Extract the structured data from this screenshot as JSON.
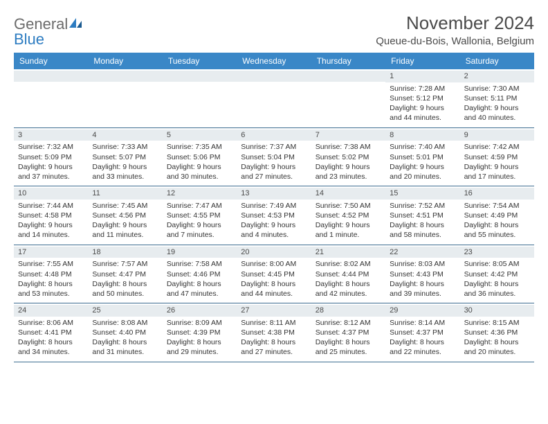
{
  "logo": {
    "line1": "General",
    "line2": "Blue"
  },
  "title": "November 2024",
  "location": "Queue-du-Bois, Wallonia, Belgium",
  "colors": {
    "header_bg": "#3a87c7",
    "header_text": "#ffffff",
    "daynum_bg": "#e7ecef",
    "border": "#3a6a8f",
    "logo_gray": "#6b6b6b",
    "logo_blue": "#2d7cc1",
    "body_text": "#333333"
  },
  "typography": {
    "title_fontsize": 26,
    "location_fontsize": 15,
    "dayheader_fontsize": 12,
    "cell_fontsize": 10.5
  },
  "day_names": [
    "Sunday",
    "Monday",
    "Tuesday",
    "Wednesday",
    "Thursday",
    "Friday",
    "Saturday"
  ],
  "weeks": [
    [
      {
        "n": "",
        "sr": "",
        "ss": "",
        "dl": ""
      },
      {
        "n": "",
        "sr": "",
        "ss": "",
        "dl": ""
      },
      {
        "n": "",
        "sr": "",
        "ss": "",
        "dl": ""
      },
      {
        "n": "",
        "sr": "",
        "ss": "",
        "dl": ""
      },
      {
        "n": "",
        "sr": "",
        "ss": "",
        "dl": ""
      },
      {
        "n": "1",
        "sr": "Sunrise: 7:28 AM",
        "ss": "Sunset: 5:12 PM",
        "dl": "Daylight: 9 hours and 44 minutes."
      },
      {
        "n": "2",
        "sr": "Sunrise: 7:30 AM",
        "ss": "Sunset: 5:11 PM",
        "dl": "Daylight: 9 hours and 40 minutes."
      }
    ],
    [
      {
        "n": "3",
        "sr": "Sunrise: 7:32 AM",
        "ss": "Sunset: 5:09 PM",
        "dl": "Daylight: 9 hours and 37 minutes."
      },
      {
        "n": "4",
        "sr": "Sunrise: 7:33 AM",
        "ss": "Sunset: 5:07 PM",
        "dl": "Daylight: 9 hours and 33 minutes."
      },
      {
        "n": "5",
        "sr": "Sunrise: 7:35 AM",
        "ss": "Sunset: 5:06 PM",
        "dl": "Daylight: 9 hours and 30 minutes."
      },
      {
        "n": "6",
        "sr": "Sunrise: 7:37 AM",
        "ss": "Sunset: 5:04 PM",
        "dl": "Daylight: 9 hours and 27 minutes."
      },
      {
        "n": "7",
        "sr": "Sunrise: 7:38 AM",
        "ss": "Sunset: 5:02 PM",
        "dl": "Daylight: 9 hours and 23 minutes."
      },
      {
        "n": "8",
        "sr": "Sunrise: 7:40 AM",
        "ss": "Sunset: 5:01 PM",
        "dl": "Daylight: 9 hours and 20 minutes."
      },
      {
        "n": "9",
        "sr": "Sunrise: 7:42 AM",
        "ss": "Sunset: 4:59 PM",
        "dl": "Daylight: 9 hours and 17 minutes."
      }
    ],
    [
      {
        "n": "10",
        "sr": "Sunrise: 7:44 AM",
        "ss": "Sunset: 4:58 PM",
        "dl": "Daylight: 9 hours and 14 minutes."
      },
      {
        "n": "11",
        "sr": "Sunrise: 7:45 AM",
        "ss": "Sunset: 4:56 PM",
        "dl": "Daylight: 9 hours and 11 minutes."
      },
      {
        "n": "12",
        "sr": "Sunrise: 7:47 AM",
        "ss": "Sunset: 4:55 PM",
        "dl": "Daylight: 9 hours and 7 minutes."
      },
      {
        "n": "13",
        "sr": "Sunrise: 7:49 AM",
        "ss": "Sunset: 4:53 PM",
        "dl": "Daylight: 9 hours and 4 minutes."
      },
      {
        "n": "14",
        "sr": "Sunrise: 7:50 AM",
        "ss": "Sunset: 4:52 PM",
        "dl": "Daylight: 9 hours and 1 minute."
      },
      {
        "n": "15",
        "sr": "Sunrise: 7:52 AM",
        "ss": "Sunset: 4:51 PM",
        "dl": "Daylight: 8 hours and 58 minutes."
      },
      {
        "n": "16",
        "sr": "Sunrise: 7:54 AM",
        "ss": "Sunset: 4:49 PM",
        "dl": "Daylight: 8 hours and 55 minutes."
      }
    ],
    [
      {
        "n": "17",
        "sr": "Sunrise: 7:55 AM",
        "ss": "Sunset: 4:48 PM",
        "dl": "Daylight: 8 hours and 53 minutes."
      },
      {
        "n": "18",
        "sr": "Sunrise: 7:57 AM",
        "ss": "Sunset: 4:47 PM",
        "dl": "Daylight: 8 hours and 50 minutes."
      },
      {
        "n": "19",
        "sr": "Sunrise: 7:58 AM",
        "ss": "Sunset: 4:46 PM",
        "dl": "Daylight: 8 hours and 47 minutes."
      },
      {
        "n": "20",
        "sr": "Sunrise: 8:00 AM",
        "ss": "Sunset: 4:45 PM",
        "dl": "Daylight: 8 hours and 44 minutes."
      },
      {
        "n": "21",
        "sr": "Sunrise: 8:02 AM",
        "ss": "Sunset: 4:44 PM",
        "dl": "Daylight: 8 hours and 42 minutes."
      },
      {
        "n": "22",
        "sr": "Sunrise: 8:03 AM",
        "ss": "Sunset: 4:43 PM",
        "dl": "Daylight: 8 hours and 39 minutes."
      },
      {
        "n": "23",
        "sr": "Sunrise: 8:05 AM",
        "ss": "Sunset: 4:42 PM",
        "dl": "Daylight: 8 hours and 36 minutes."
      }
    ],
    [
      {
        "n": "24",
        "sr": "Sunrise: 8:06 AM",
        "ss": "Sunset: 4:41 PM",
        "dl": "Daylight: 8 hours and 34 minutes."
      },
      {
        "n": "25",
        "sr": "Sunrise: 8:08 AM",
        "ss": "Sunset: 4:40 PM",
        "dl": "Daylight: 8 hours and 31 minutes."
      },
      {
        "n": "26",
        "sr": "Sunrise: 8:09 AM",
        "ss": "Sunset: 4:39 PM",
        "dl": "Daylight: 8 hours and 29 minutes."
      },
      {
        "n": "27",
        "sr": "Sunrise: 8:11 AM",
        "ss": "Sunset: 4:38 PM",
        "dl": "Daylight: 8 hours and 27 minutes."
      },
      {
        "n": "28",
        "sr": "Sunrise: 8:12 AM",
        "ss": "Sunset: 4:37 PM",
        "dl": "Daylight: 8 hours and 25 minutes."
      },
      {
        "n": "29",
        "sr": "Sunrise: 8:14 AM",
        "ss": "Sunset: 4:37 PM",
        "dl": "Daylight: 8 hours and 22 minutes."
      },
      {
        "n": "30",
        "sr": "Sunrise: 8:15 AM",
        "ss": "Sunset: 4:36 PM",
        "dl": "Daylight: 8 hours and 20 minutes."
      }
    ]
  ]
}
